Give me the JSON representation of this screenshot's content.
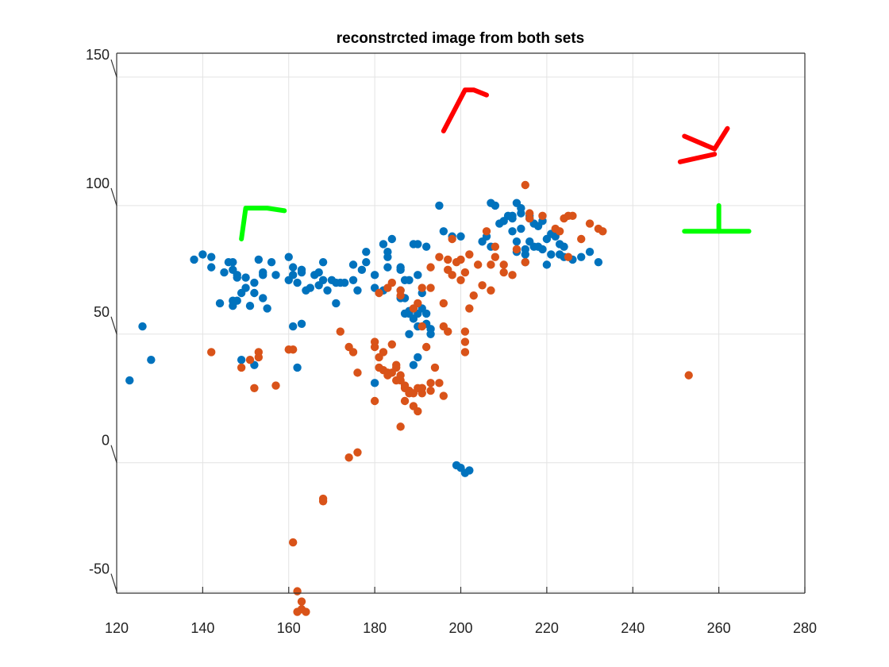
{
  "chart_data": {
    "type": "scatter",
    "title": "reconstrcted image from both sets",
    "xlabel": "",
    "ylabel": "",
    "xlim": [
      120,
      280
    ],
    "ylim": [
      -60,
      150
    ],
    "x_ticks": [
      120,
      140,
      160,
      180,
      200,
      220,
      240,
      260,
      280
    ],
    "y_ticks": [
      -50,
      0,
      50,
      100,
      150
    ],
    "grid": true,
    "legend": "none",
    "series": [
      {
        "color": "#0072BD",
        "points": [
          [
            123,
            32
          ],
          [
            126,
            53
          ],
          [
            128,
            40
          ],
          [
            138,
            79
          ],
          [
            140,
            81
          ],
          [
            142,
            80
          ],
          [
            142,
            76
          ],
          [
            145,
            74
          ],
          [
            146,
            78
          ],
          [
            147,
            75
          ],
          [
            147,
            78
          ],
          [
            148,
            73
          ],
          [
            148,
            72
          ],
          [
            147,
            63
          ],
          [
            148,
            63
          ],
          [
            150,
            68
          ],
          [
            149,
            66
          ],
          [
            150,
            72
          ],
          [
            151,
            61
          ],
          [
            152,
            66
          ],
          [
            152,
            70
          ],
          [
            153,
            79
          ],
          [
            154,
            74
          ],
          [
            154,
            73
          ],
          [
            156,
            78
          ],
          [
            157,
            73
          ],
          [
            160,
            80
          ],
          [
            161,
            76
          ],
          [
            161,
            73
          ],
          [
            162,
            70
          ],
          [
            163,
            74
          ],
          [
            163,
            75
          ],
          [
            164,
            67
          ],
          [
            165,
            68
          ],
          [
            166,
            73
          ],
          [
            167,
            74
          ],
          [
            168,
            78
          ],
          [
            168,
            71
          ],
          [
            169,
            67
          ],
          [
            170,
            71
          ],
          [
            171,
            70
          ],
          [
            172,
            70
          ],
          [
            173,
            70
          ],
          [
            175,
            71
          ],
          [
            177,
            75
          ],
          [
            178,
            82
          ],
          [
            178,
            78
          ],
          [
            180,
            73
          ],
          [
            180,
            68
          ],
          [
            182,
            85
          ],
          [
            183,
            76
          ],
          [
            183,
            82
          ],
          [
            184,
            87
          ],
          [
            186,
            76
          ],
          [
            186,
            75
          ],
          [
            188,
            71
          ],
          [
            186,
            64
          ],
          [
            187,
            64
          ],
          [
            188,
            59
          ],
          [
            188,
            58
          ],
          [
            189,
            56
          ],
          [
            190,
            58
          ],
          [
            191,
            60
          ],
          [
            192,
            58
          ],
          [
            190,
            85
          ],
          [
            192,
            84
          ],
          [
            195,
            100
          ],
          [
            196,
            90
          ],
          [
            198,
            88
          ],
          [
            200,
            88
          ],
          [
            189,
            85
          ],
          [
            186,
            67
          ],
          [
            190,
            73
          ],
          [
            191,
            66
          ],
          [
            188,
            50
          ],
          [
            190,
            53
          ],
          [
            192,
            54
          ],
          [
            193,
            52
          ],
          [
            190,
            41
          ],
          [
            189,
            38
          ],
          [
            180,
            31
          ],
          [
            161,
            53
          ],
          [
            162,
            37
          ],
          [
            163,
            54
          ],
          [
            154,
            64
          ],
          [
            155,
            60
          ],
          [
            144,
            62
          ],
          [
            147,
            61
          ],
          [
            149,
            40
          ],
          [
            152,
            38
          ],
          [
            160,
            71
          ],
          [
            167,
            69
          ],
          [
            175,
            77
          ],
          [
            171,
            62
          ],
          [
            176,
            67
          ],
          [
            182,
            67
          ],
          [
            187,
            58
          ],
          [
            183,
            80
          ],
          [
            187,
            71
          ],
          [
            193,
            50
          ],
          [
            199,
            -1
          ],
          [
            200,
            -2
          ],
          [
            201,
            -4
          ],
          [
            202,
            -3
          ],
          [
            207,
            101
          ],
          [
            208,
            100
          ],
          [
            213,
            101
          ],
          [
            212,
            96
          ],
          [
            214,
            97
          ],
          [
            216,
            95
          ],
          [
            217,
            93
          ],
          [
            214,
            91
          ],
          [
            212,
            90
          ],
          [
            218,
            92
          ],
          [
            219,
            94
          ],
          [
            220,
            87
          ],
          [
            221,
            89
          ],
          [
            222,
            88
          ],
          [
            223,
            85
          ],
          [
            224,
            84
          ],
          [
            216,
            86
          ],
          [
            215,
            83
          ],
          [
            213,
            86
          ],
          [
            211,
            96
          ],
          [
            212,
            95
          ],
          [
            214,
            99
          ],
          [
            216,
            96
          ],
          [
            217,
            84
          ],
          [
            219,
            83
          ],
          [
            221,
            81
          ],
          [
            223,
            81
          ],
          [
            224,
            80
          ],
          [
            226,
            79
          ],
          [
            228,
            80
          ],
          [
            230,
            82
          ],
          [
            232,
            78
          ],
          [
            215,
            81
          ],
          [
            218,
            84
          ],
          [
            209,
            93
          ],
          [
            210,
            94
          ],
          [
            206,
            88
          ],
          [
            205,
            86
          ],
          [
            207,
            84
          ],
          [
            213,
            82
          ],
          [
            215,
            78
          ],
          [
            220,
            77
          ]
        ]
      },
      {
        "color": "#D95319",
        "points": [
          [
            142,
            43
          ],
          [
            149,
            37
          ],
          [
            151,
            40
          ],
          [
            152,
            29
          ],
          [
            153,
            41
          ],
          [
            153,
            43
          ],
          [
            157,
            30
          ],
          [
            160,
            44
          ],
          [
            161,
            44
          ],
          [
            172,
            51
          ],
          [
            174,
            45
          ],
          [
            175,
            43
          ],
          [
            176,
            35
          ],
          [
            180,
            45
          ],
          [
            181,
            41
          ],
          [
            181,
            37
          ],
          [
            182,
            36
          ],
          [
            182,
            43
          ],
          [
            183,
            35
          ],
          [
            183,
            34
          ],
          [
            184,
            35
          ],
          [
            185,
            38
          ],
          [
            185,
            37
          ],
          [
            186,
            34
          ],
          [
            186,
            32
          ],
          [
            185,
            32
          ],
          [
            187,
            30
          ],
          [
            187,
            29
          ],
          [
            188,
            28
          ],
          [
            188,
            27
          ],
          [
            189,
            27
          ],
          [
            190,
            29
          ],
          [
            191,
            27
          ],
          [
            190,
            20
          ],
          [
            189,
            22
          ],
          [
            187,
            24
          ],
          [
            186,
            14
          ],
          [
            180,
            24
          ],
          [
            191,
            29
          ],
          [
            193,
            31
          ],
          [
            193,
            28
          ],
          [
            196,
            26
          ],
          [
            181,
            66
          ],
          [
            183,
            68
          ],
          [
            184,
            70
          ],
          [
            186,
            67
          ],
          [
            186,
            65
          ],
          [
            189,
            60
          ],
          [
            190,
            62
          ],
          [
            191,
            68
          ],
          [
            193,
            68
          ],
          [
            193,
            76
          ],
          [
            195,
            80
          ],
          [
            196,
            62
          ],
          [
            197,
            79
          ],
          [
            197,
            75
          ],
          [
            197,
            51
          ],
          [
            198,
            87
          ],
          [
            198,
            73
          ],
          [
            199,
            78
          ],
          [
            200,
            79
          ],
          [
            200,
            71
          ],
          [
            201,
            51
          ],
          [
            201,
            74
          ],
          [
            202,
            81
          ],
          [
            202,
            60
          ],
          [
            203,
            65
          ],
          [
            204,
            77
          ],
          [
            205,
            69
          ],
          [
            206,
            90
          ],
          [
            207,
            67
          ],
          [
            207,
            77
          ],
          [
            208,
            84
          ],
          [
            208,
            80
          ],
          [
            210,
            74
          ],
          [
            210,
            77
          ],
          [
            212,
            73
          ],
          [
            213,
            83
          ],
          [
            215,
            78
          ],
          [
            216,
            95
          ],
          [
            216,
            97
          ],
          [
            215,
            108
          ],
          [
            219,
            96
          ],
          [
            222,
            91
          ],
          [
            223,
            90
          ],
          [
            224,
            95
          ],
          [
            225,
            96
          ],
          [
            226,
            96
          ],
          [
            230,
            93
          ],
          [
            232,
            91
          ],
          [
            233,
            90
          ],
          [
            228,
            87
          ],
          [
            225,
            80
          ],
          [
            191,
            53
          ],
          [
            196,
            53
          ],
          [
            201,
            47
          ],
          [
            201,
            43
          ],
          [
            195,
            31
          ],
          [
            192,
            45
          ],
          [
            194,
            37
          ],
          [
            191,
            29
          ],
          [
            253,
            34
          ],
          [
            168,
            -15
          ],
          [
            168,
            -14
          ],
          [
            174,
            2
          ],
          [
            176,
            4
          ],
          [
            161,
            -31
          ],
          [
            162,
            -50
          ],
          [
            163,
            -54
          ],
          [
            163,
            -57
          ],
          [
            164,
            -58
          ],
          [
            162,
            -58
          ],
          [
            180,
            47
          ],
          [
            184,
            46
          ]
        ]
      }
    ],
    "annotations": [
      {
        "color": "#FF0000",
        "polyline": [
          [
            196,
            129
          ],
          [
            201,
            145
          ],
          [
            203,
            145
          ],
          [
            206,
            143
          ]
        ]
      },
      {
        "color": "#FF0000",
        "polyline": [
          [
            251,
            117
          ],
          [
            259,
            120
          ]
        ]
      },
      {
        "color": "#FF0000",
        "polyline": [
          [
            252,
            127
          ],
          [
            259,
            122
          ],
          [
            262,
            130
          ]
        ]
      },
      {
        "color": "#00FF00",
        "polyline": [
          [
            149,
            87
          ],
          [
            150,
            99
          ],
          [
            155,
            99
          ],
          [
            159,
            98
          ]
        ]
      },
      {
        "color": "#00FF00",
        "polyline": [
          [
            252,
            90
          ],
          [
            267,
            90
          ]
        ]
      },
      {
        "color": "#00FF00",
        "polyline": [
          [
            260,
            90
          ],
          [
            260,
            100
          ]
        ]
      }
    ]
  }
}
